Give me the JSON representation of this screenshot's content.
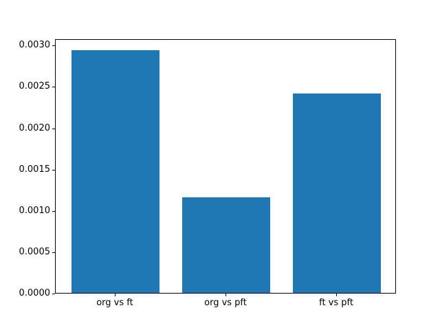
{
  "figure": {
    "background": "#ffffff"
  },
  "chart_data": {
    "type": "bar",
    "title": "",
    "xlabel": "",
    "ylabel": "",
    "categories": [
      "org vs ft",
      "org vs pft",
      "ft vs pft"
    ],
    "values": [
      0.002935,
      0.001159,
      0.002415
    ],
    "bar_color": "#1f77b4",
    "bar_width": 0.8,
    "xlim": [
      -0.54,
      2.54
    ],
    "ylim": [
      0,
      0.003077
    ],
    "yticks": [
      0.0,
      0.0005,
      0.001,
      0.0015,
      0.002,
      0.0025,
      0.003
    ],
    "ytick_labels": [
      "0.0000",
      "0.0005",
      "0.0010",
      "0.0015",
      "0.0020",
      "0.0025",
      "0.0030"
    ],
    "grid": false,
    "legend": "none",
    "frame": "all-sides",
    "text_color": "#000000"
  }
}
